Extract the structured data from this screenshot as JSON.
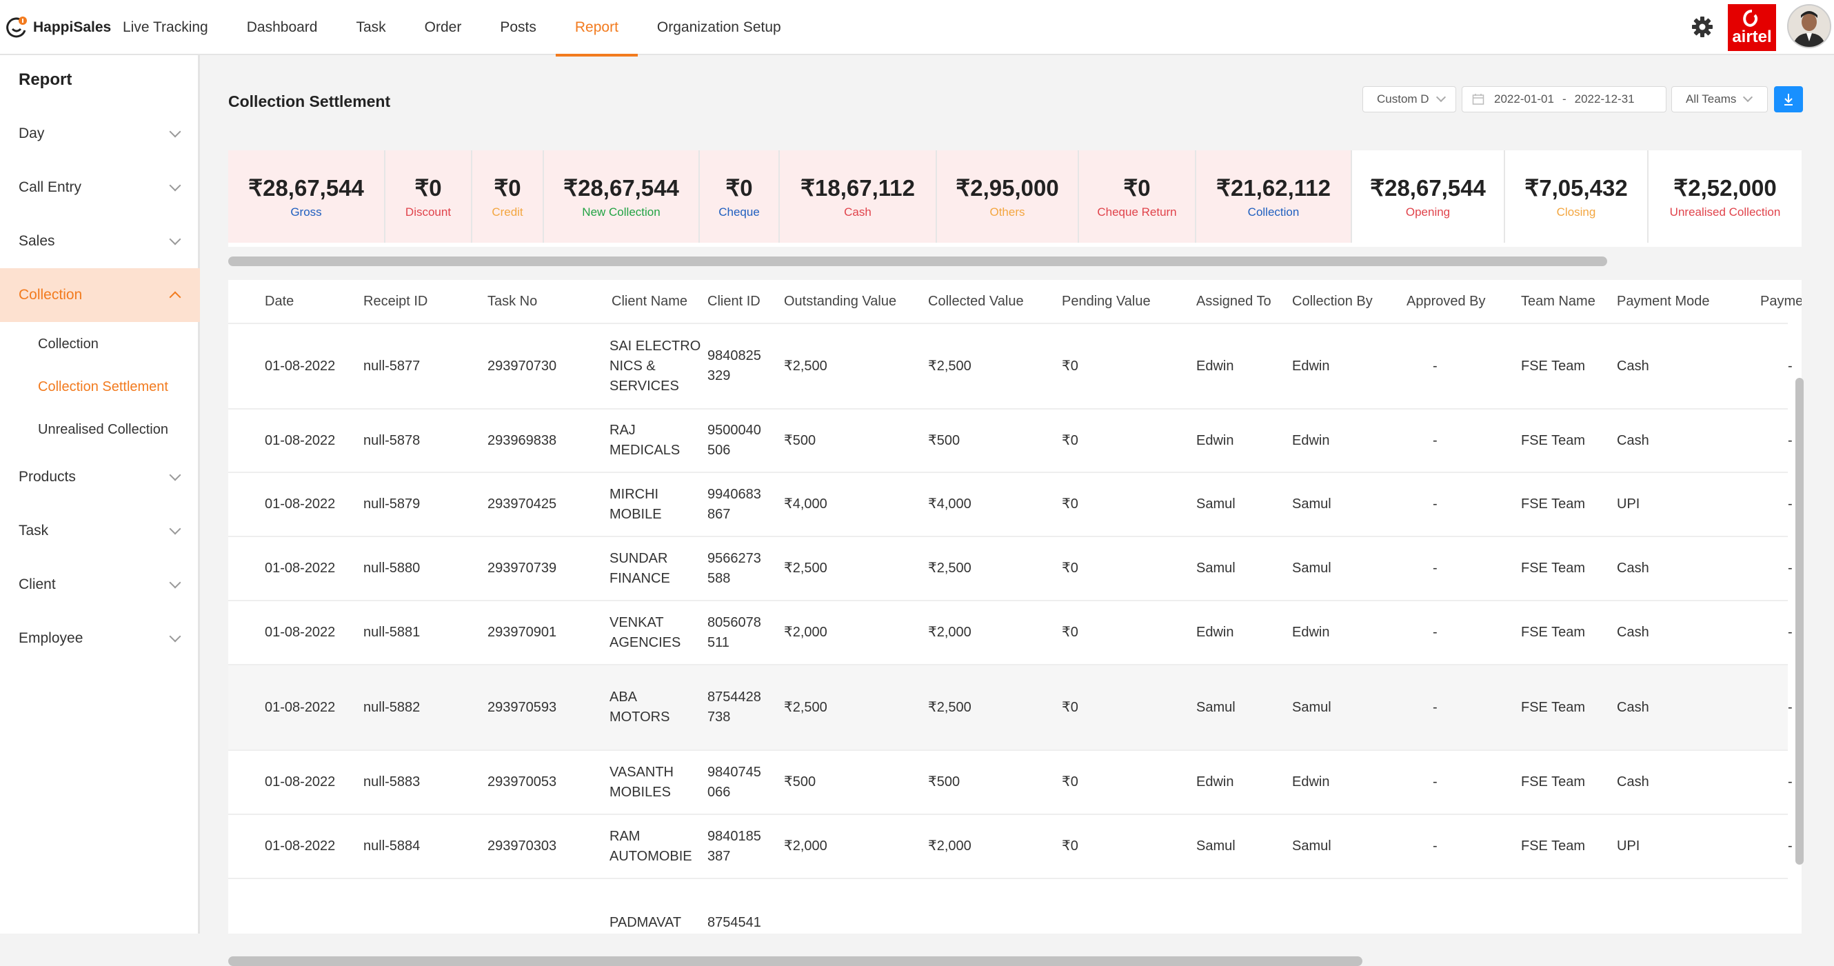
{
  "brand": {
    "name": "HappiSales"
  },
  "nav": {
    "items": [
      "Live Tracking",
      "Dashboard",
      "Task",
      "Order",
      "Posts",
      "Report",
      "Organization Setup"
    ],
    "active": "Report"
  },
  "header_right": {
    "operator_logo_text": "airtel"
  },
  "sidebar": {
    "title": "Report",
    "items": [
      "Day",
      "Call Entry",
      "Sales",
      "Collection",
      "Products",
      "Task",
      "Client",
      "Employee"
    ],
    "expanded": "Collection",
    "sub_items": [
      "Collection",
      "Collection Settlement",
      "Unrealised Collection"
    ],
    "active_sub": "Collection Settlement"
  },
  "page": {
    "title": "Collection Settlement",
    "filters": {
      "range_select": "Custom D",
      "date_from": "2022-01-01",
      "date_sep": "-",
      "date_to": "2022-12-31",
      "team_select": "All Teams"
    }
  },
  "summary": [
    {
      "value": "₹28,67,544",
      "label": "Gross",
      "color": "#1f5fbf"
    },
    {
      "value": "₹0",
      "label": "Discount",
      "color": "#e0434b"
    },
    {
      "value": "₹0",
      "label": "Credit",
      "color": "#f3a640"
    },
    {
      "value": "₹28,67,544",
      "label": "New Collection",
      "color": "#22a344"
    },
    {
      "value": "₹0",
      "label": "Cheque",
      "color": "#1f5fbf"
    },
    {
      "value": "₹18,67,112",
      "label": "Cash",
      "color": "#e0434b"
    },
    {
      "value": "₹2,95,000",
      "label": "Others",
      "color": "#f3a640"
    },
    {
      "value": "₹0",
      "label": "Cheque Return",
      "color": "#e0434b"
    },
    {
      "value": "₹21,62,112",
      "label": "Collection",
      "color": "#1f5fbf"
    },
    {
      "value": "₹28,67,544",
      "label": "Opening",
      "color": "#e0434b"
    },
    {
      "value": "₹7,05,432",
      "label": "Closing",
      "color": "#f3a640"
    },
    {
      "value": "₹2,52,000",
      "label": "Unrealised Collection",
      "color": "#e0434b"
    }
  ],
  "table": {
    "columns": [
      "Date",
      "Receipt ID",
      "Task No",
      "Client Name",
      "Client ID",
      "Outstanding Value",
      "Collected Value",
      "Pending Value",
      "Assigned To",
      "Collection By",
      "Approved By",
      "Team Name",
      "Payment Mode",
      "Payme"
    ],
    "rows": [
      {
        "date": "01-08-2022",
        "receipt": "null-5877",
        "task": "293970730",
        "client_lines": [
          "SAI ELECTRO",
          "NICS &",
          "SERVICES"
        ],
        "client_id_lines": [
          "9840825",
          "329"
        ],
        "outstanding": "₹2,500",
        "collected": "₹2,500",
        "pending": "₹0",
        "assigned": "Edwin",
        "collected_by": "Edwin",
        "approved": "-",
        "team": "FSE Team",
        "mode": "Cash",
        "payme": "-"
      },
      {
        "date": "01-08-2022",
        "receipt": "null-5878",
        "task": "293969838",
        "client_lines": [
          "RAJ",
          "MEDICALS"
        ],
        "client_id_lines": [
          "9500040",
          "506"
        ],
        "outstanding": "₹500",
        "collected": "₹500",
        "pending": "₹0",
        "assigned": "Edwin",
        "collected_by": "Edwin",
        "approved": "-",
        "team": "FSE Team",
        "mode": "Cash",
        "payme": "-"
      },
      {
        "date": "01-08-2022",
        "receipt": "null-5879",
        "task": "293970425",
        "client_lines": [
          "MIRCHI",
          "MOBILE"
        ],
        "client_id_lines": [
          "9940683",
          "867"
        ],
        "outstanding": "₹4,000",
        "collected": "₹4,000",
        "pending": "₹0",
        "assigned": "Samul",
        "collected_by": "Samul",
        "approved": "-",
        "team": "FSE Team",
        "mode": "UPI",
        "payme": "-"
      },
      {
        "date": "01-08-2022",
        "receipt": "null-5880",
        "task": "293970739",
        "client_lines": [
          "SUNDAR",
          "FINANCE"
        ],
        "client_id_lines": [
          "9566273",
          "588"
        ],
        "outstanding": "₹2,500",
        "collected": "₹2,500",
        "pending": "₹0",
        "assigned": "Samul",
        "collected_by": "Samul",
        "approved": "-",
        "team": "FSE Team",
        "mode": "Cash",
        "payme": "-"
      },
      {
        "date": "01-08-2022",
        "receipt": "null-5881",
        "task": "293970901",
        "client_lines": [
          "VENKAT",
          "AGENCIES"
        ],
        "client_id_lines": [
          "8056078",
          "511"
        ],
        "outstanding": "₹2,000",
        "collected": "₹2,000",
        "pending": "₹0",
        "assigned": "Edwin",
        "collected_by": "Edwin",
        "approved": "-",
        "team": "FSE Team",
        "mode": "Cash",
        "payme": "-"
      },
      {
        "date": "01-08-2022",
        "receipt": "null-5882",
        "task": "293970593",
        "client_lines": [
          "ABA",
          "MOTORS"
        ],
        "client_id_lines": [
          "8754428",
          "738"
        ],
        "outstanding": "₹2,500",
        "collected": "₹2,500",
        "pending": "₹0",
        "assigned": "Samul",
        "collected_by": "Samul",
        "approved": "-",
        "team": "FSE Team",
        "mode": "Cash",
        "payme": "-"
      },
      {
        "date": "01-08-2022",
        "receipt": "null-5883",
        "task": "293970053",
        "client_lines": [
          "VASANTH",
          "MOBILES"
        ],
        "client_id_lines": [
          "9840745",
          "066"
        ],
        "outstanding": "₹500",
        "collected": "₹500",
        "pending": "₹0",
        "assigned": "Edwin",
        "collected_by": "Edwin",
        "approved": "-",
        "team": "FSE Team",
        "mode": "Cash",
        "payme": "-"
      },
      {
        "date": "01-08-2022",
        "receipt": "null-5884",
        "task": "293970303",
        "client_lines": [
          "RAM",
          "AUTOMOBIE"
        ],
        "client_id_lines": [
          "9840185",
          "387"
        ],
        "outstanding": "₹2,000",
        "collected": "₹2,000",
        "pending": "₹0",
        "assigned": "Samul",
        "collected_by": "Samul",
        "approved": "-",
        "team": "FSE Team",
        "mode": "UPI",
        "payme": "-"
      },
      {
        "date": "",
        "receipt": "",
        "task": "",
        "client_lines": [
          "PADMAVAT"
        ],
        "client_id_lines": [
          "8754541"
        ],
        "outstanding": "",
        "collected": "",
        "pending": "",
        "assigned": "",
        "collected_by": "",
        "approved": "",
        "team": "",
        "mode": "",
        "payme": ""
      }
    ]
  }
}
